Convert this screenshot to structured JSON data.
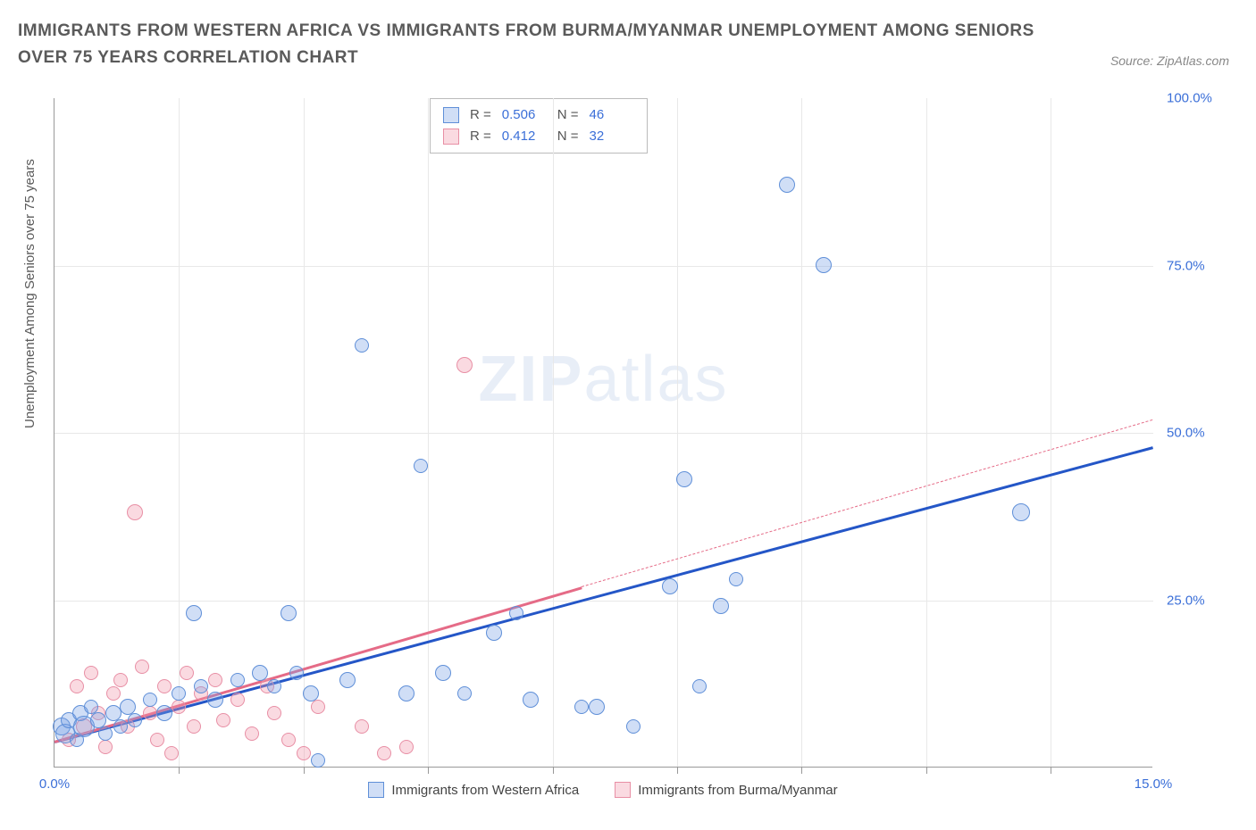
{
  "title": "IMMIGRANTS FROM WESTERN AFRICA VS IMMIGRANTS FROM BURMA/MYANMAR UNEMPLOYMENT AMONG SENIORS OVER 75 YEARS CORRELATION CHART",
  "source": "Source: ZipAtlas.com",
  "ylabel": "Unemployment Among Seniors over 75 years",
  "watermark_bold": "ZIP",
  "watermark_light": "atlas",
  "chart": {
    "type": "scatter",
    "xlim": [
      0,
      15
    ],
    "ylim": [
      0,
      100
    ],
    "xticks": [
      0,
      15
    ],
    "yticks": [
      25,
      50,
      75,
      100
    ],
    "xtick_labels": [
      "0.0%",
      "15.0%"
    ],
    "ytick_labels": [
      "25.0%",
      "50.0%",
      "75.0%",
      "100.0%"
    ],
    "grid_v": [
      1.7,
      3.4,
      5.1,
      6.8,
      8.5,
      10.2,
      11.9,
      13.6
    ],
    "grid_h": [
      25,
      50,
      75
    ],
    "background_color": "#ffffff",
    "grid_color": "#e8e8e8",
    "axis_color": "#999999",
    "text_color": "#5a5a5a",
    "tick_label_color": "#3b6fd8"
  },
  "series": [
    {
      "name": "Immigrants from Western Africa",
      "fill": "rgba(120,160,230,0.35)",
      "stroke": "#5f8fd8",
      "line_color": "#2456c7",
      "R": "0.506",
      "N": "46",
      "trend": {
        "x1": 0,
        "y1": 4,
        "x2": 15,
        "y2": 48,
        "dash_from": null
      },
      "points": [
        {
          "x": 0.1,
          "y": 6,
          "r": 10
        },
        {
          "x": 0.15,
          "y": 5,
          "r": 11
        },
        {
          "x": 0.2,
          "y": 7,
          "r": 9
        },
        {
          "x": 0.3,
          "y": 4,
          "r": 8
        },
        {
          "x": 0.35,
          "y": 8,
          "r": 9
        },
        {
          "x": 0.4,
          "y": 6,
          "r": 12
        },
        {
          "x": 0.5,
          "y": 9,
          "r": 8
        },
        {
          "x": 0.6,
          "y": 7,
          "r": 9
        },
        {
          "x": 0.7,
          "y": 5,
          "r": 8
        },
        {
          "x": 0.8,
          "y": 8,
          "r": 9
        },
        {
          "x": 0.9,
          "y": 6,
          "r": 8
        },
        {
          "x": 1.0,
          "y": 9,
          "r": 9
        },
        {
          "x": 1.1,
          "y": 7,
          "r": 8
        },
        {
          "x": 1.3,
          "y": 10,
          "r": 8
        },
        {
          "x": 1.5,
          "y": 8,
          "r": 9
        },
        {
          "x": 1.7,
          "y": 11,
          "r": 8
        },
        {
          "x": 1.9,
          "y": 23,
          "r": 9
        },
        {
          "x": 2.0,
          "y": 12,
          "r": 8
        },
        {
          "x": 2.2,
          "y": 10,
          "r": 9
        },
        {
          "x": 2.5,
          "y": 13,
          "r": 8
        },
        {
          "x": 2.8,
          "y": 14,
          "r": 9
        },
        {
          "x": 3.0,
          "y": 12,
          "r": 8
        },
        {
          "x": 3.2,
          "y": 23,
          "r": 9
        },
        {
          "x": 3.3,
          "y": 14,
          "r": 8
        },
        {
          "x": 3.5,
          "y": 11,
          "r": 9
        },
        {
          "x": 3.6,
          "y": 1,
          "r": 8
        },
        {
          "x": 4.0,
          "y": 13,
          "r": 9
        },
        {
          "x": 4.2,
          "y": 63,
          "r": 8
        },
        {
          "x": 4.8,
          "y": 11,
          "r": 9
        },
        {
          "x": 5.0,
          "y": 45,
          "r": 8
        },
        {
          "x": 5.3,
          "y": 14,
          "r": 9
        },
        {
          "x": 5.6,
          "y": 11,
          "r": 8
        },
        {
          "x": 6.0,
          "y": 20,
          "r": 9
        },
        {
          "x": 6.3,
          "y": 23,
          "r": 8
        },
        {
          "x": 6.5,
          "y": 10,
          "r": 9
        },
        {
          "x": 7.2,
          "y": 9,
          "r": 8
        },
        {
          "x": 7.4,
          "y": 9,
          "r": 9
        },
        {
          "x": 7.9,
          "y": 6,
          "r": 8
        },
        {
          "x": 8.4,
          "y": 27,
          "r": 9
        },
        {
          "x": 8.6,
          "y": 43,
          "r": 9
        },
        {
          "x": 8.8,
          "y": 12,
          "r": 8
        },
        {
          "x": 9.1,
          "y": 24,
          "r": 9
        },
        {
          "x": 9.3,
          "y": 28,
          "r": 8
        },
        {
          "x": 10.0,
          "y": 87,
          "r": 9
        },
        {
          "x": 10.5,
          "y": 75,
          "r": 9
        },
        {
          "x": 13.2,
          "y": 38,
          "r": 10
        }
      ]
    },
    {
      "name": "Immigrants from Burma/Myanmar",
      "fill": "rgba(240,150,170,0.35)",
      "stroke": "#e88fa5",
      "line_color": "#e56b87",
      "R": "0.412",
      "N": "32",
      "trend": {
        "x1": 0,
        "y1": 4,
        "x2": 15,
        "y2": 52,
        "dash_from": 7.2
      },
      "points": [
        {
          "x": 0.2,
          "y": 4,
          "r": 8
        },
        {
          "x": 0.3,
          "y": 12,
          "r": 8
        },
        {
          "x": 0.4,
          "y": 6,
          "r": 9
        },
        {
          "x": 0.5,
          "y": 14,
          "r": 8
        },
        {
          "x": 0.6,
          "y": 8,
          "r": 8
        },
        {
          "x": 0.7,
          "y": 3,
          "r": 8
        },
        {
          "x": 0.8,
          "y": 11,
          "r": 8
        },
        {
          "x": 0.9,
          "y": 13,
          "r": 8
        },
        {
          "x": 1.0,
          "y": 6,
          "r": 8
        },
        {
          "x": 1.1,
          "y": 38,
          "r": 9
        },
        {
          "x": 1.2,
          "y": 15,
          "r": 8
        },
        {
          "x": 1.3,
          "y": 8,
          "r": 8
        },
        {
          "x": 1.4,
          "y": 4,
          "r": 8
        },
        {
          "x": 1.5,
          "y": 12,
          "r": 8
        },
        {
          "x": 1.6,
          "y": 2,
          "r": 8
        },
        {
          "x": 1.7,
          "y": 9,
          "r": 8
        },
        {
          "x": 1.8,
          "y": 14,
          "r": 8
        },
        {
          "x": 1.9,
          "y": 6,
          "r": 8
        },
        {
          "x": 2.0,
          "y": 11,
          "r": 8
        },
        {
          "x": 2.2,
          "y": 13,
          "r": 8
        },
        {
          "x": 2.3,
          "y": 7,
          "r": 8
        },
        {
          "x": 2.5,
          "y": 10,
          "r": 8
        },
        {
          "x": 2.7,
          "y": 5,
          "r": 8
        },
        {
          "x": 2.9,
          "y": 12,
          "r": 8
        },
        {
          "x": 3.0,
          "y": 8,
          "r": 8
        },
        {
          "x": 3.2,
          "y": 4,
          "r": 8
        },
        {
          "x": 3.4,
          "y": 2,
          "r": 8
        },
        {
          "x": 3.6,
          "y": 9,
          "r": 8
        },
        {
          "x": 4.2,
          "y": 6,
          "r": 8
        },
        {
          "x": 4.5,
          "y": 2,
          "r": 8
        },
        {
          "x": 4.8,
          "y": 3,
          "r": 8
        },
        {
          "x": 5.6,
          "y": 60,
          "r": 9
        }
      ]
    }
  ],
  "legend": {
    "series1": "Immigrants from Western Africa",
    "series2": "Immigrants from Burma/Myanmar"
  },
  "stats_labels": {
    "R": "R =",
    "N": "N ="
  }
}
